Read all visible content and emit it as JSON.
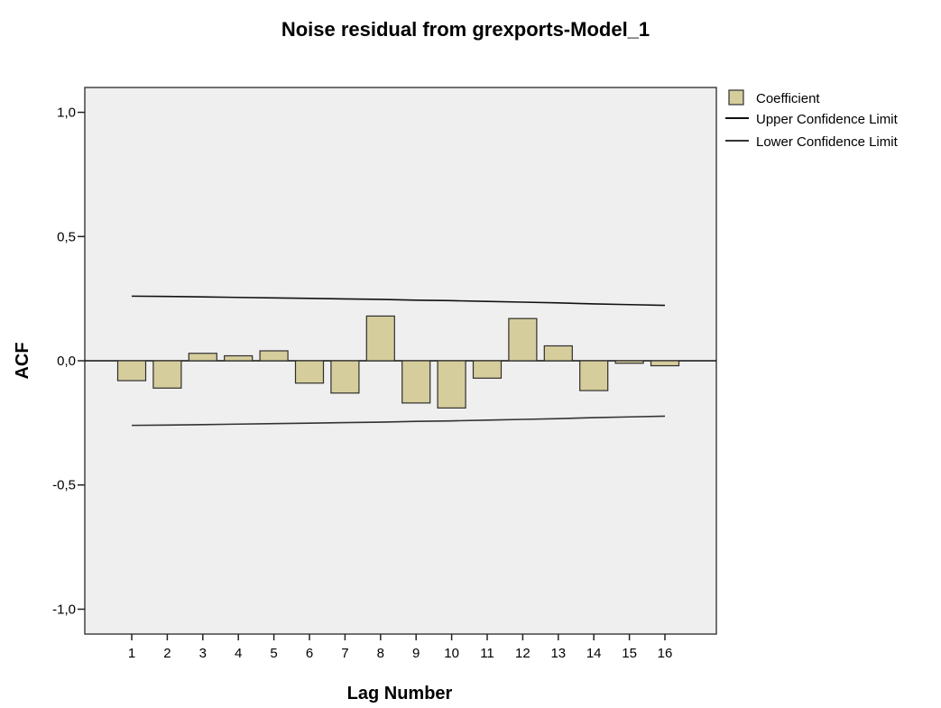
{
  "chart_data": {
    "type": "bar",
    "title": "Noise residual from grexports-Model_1",
    "xlabel": "Lag Number",
    "ylabel": "ACF",
    "categories": [
      "1",
      "2",
      "3",
      "4",
      "5",
      "6",
      "7",
      "8",
      "9",
      "10",
      "11",
      "12",
      "13",
      "14",
      "15",
      "16"
    ],
    "series": [
      {
        "name": "Coefficient",
        "values": [
          -0.08,
          -0.11,
          0.03,
          0.02,
          0.04,
          -0.09,
          -0.13,
          0.18,
          -0.17,
          -0.19,
          -0.07,
          0.17,
          0.06,
          -0.12,
          -0.01,
          -0.02
        ]
      },
      {
        "name": "Upper Confidence Limit",
        "values": [
          0.26,
          0.259,
          0.257,
          0.255,
          0.253,
          0.251,
          0.249,
          0.247,
          0.244,
          0.242,
          0.239,
          0.236,
          0.233,
          0.229,
          0.226,
          0.223
        ]
      },
      {
        "name": "Lower Confidence Limit",
        "values": [
          -0.26,
          -0.259,
          -0.257,
          -0.255,
          -0.253,
          -0.251,
          -0.249,
          -0.247,
          -0.244,
          -0.242,
          -0.239,
          -0.236,
          -0.233,
          -0.229,
          -0.226,
          -0.223
        ]
      }
    ],
    "ylim": [
      -1.1,
      1.1
    ],
    "yticks": [
      1.0,
      0.5,
      0.0,
      -0.5,
      -1.0
    ],
    "ytick_labels": [
      "1,0",
      "0,5",
      "0,0",
      "-0,5",
      "-1,0"
    ],
    "grid": false,
    "legend": {
      "position": "top-right",
      "entries": [
        "Coefficient",
        "Upper Confidence Limit",
        "Lower Confidence Limit"
      ]
    },
    "colors": {
      "bar_fill": "#d6cd9c",
      "bar_stroke": "#2e2e2e",
      "plot_bg": "#efefef",
      "upper_line": "#111111",
      "lower_line": "#333333",
      "zero_line": "#111111"
    }
  }
}
